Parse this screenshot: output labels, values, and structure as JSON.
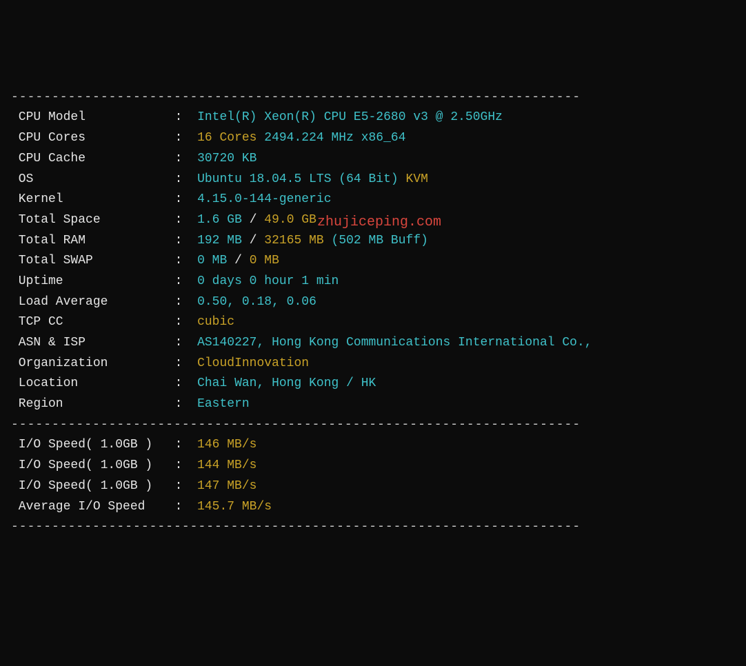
{
  "watermark": "zhujiceping.com",
  "sep": "----------------------------------------------------------------------",
  "rows": [
    {
      "label": "CPU Model",
      "spaces": "           ",
      "colon": " :  ",
      "parts": [
        {
          "t": "Intel(R) Xeon(R) CPU E5-2680 v3 @ 2.50GHz",
          "c": "cyan"
        }
      ]
    },
    {
      "label": "CPU Cores",
      "spaces": "           ",
      "colon": " :  ",
      "parts": [
        {
          "t": "16 Cores ",
          "c": "yellow"
        },
        {
          "t": "2494.224 MHz x86_64",
          "c": "cyan"
        }
      ]
    },
    {
      "label": "CPU Cache",
      "spaces": "           ",
      "colon": " :  ",
      "parts": [
        {
          "t": "30720 KB",
          "c": "cyan"
        }
      ]
    },
    {
      "label": "OS",
      "spaces": "                  ",
      "colon": " :  ",
      "parts": [
        {
          "t": "Ubuntu 18.04.5 LTS (64 Bit) ",
          "c": "cyan"
        },
        {
          "t": "KVM",
          "c": "yellow"
        }
      ]
    },
    {
      "label": "Kernel",
      "spaces": "              ",
      "colon": " :  ",
      "parts": [
        {
          "t": "4.15.0-144-generic",
          "c": "cyan"
        }
      ]
    },
    {
      "label": "Total Space",
      "spaces": "         ",
      "colon": " :  ",
      "parts": [
        {
          "t": "1.6 GB ",
          "c": "cyan"
        },
        {
          "t": "/ ",
          "c": "white"
        },
        {
          "t": "49.0 GB",
          "c": "yellow"
        }
      ]
    },
    {
      "label": "Total RAM",
      "spaces": "           ",
      "colon": " :  ",
      "parts": [
        {
          "t": "192 MB ",
          "c": "cyan"
        },
        {
          "t": "/ ",
          "c": "white"
        },
        {
          "t": "32165 MB ",
          "c": "yellow"
        },
        {
          "t": "(502 MB Buff)",
          "c": "cyan"
        }
      ]
    },
    {
      "label": "Total SWAP",
      "spaces": "          ",
      "colon": " :  ",
      "parts": [
        {
          "t": "0 MB ",
          "c": "cyan"
        },
        {
          "t": "/ ",
          "c": "white"
        },
        {
          "t": "0 MB",
          "c": "yellow"
        }
      ]
    },
    {
      "label": "Uptime",
      "spaces": "              ",
      "colon": " :  ",
      "parts": [
        {
          "t": "0 days 0 hour 1 min",
          "c": "cyan"
        }
      ]
    },
    {
      "label": "Load Average",
      "spaces": "        ",
      "colon": " :  ",
      "parts": [
        {
          "t": "0.50, 0.18, 0.06",
          "c": "cyan"
        }
      ]
    },
    {
      "label": "TCP CC",
      "spaces": "              ",
      "colon": " :  ",
      "parts": [
        {
          "t": "cubic",
          "c": "yellow"
        }
      ]
    },
    {
      "label": "ASN & ISP",
      "spaces": "           ",
      "colon": " :  ",
      "parts": [
        {
          "t": "AS140227, Hong Kong Communications International Co.,",
          "c": "cyan"
        }
      ]
    },
    {
      "label": "Organization",
      "spaces": "        ",
      "colon": " :  ",
      "parts": [
        {
          "t": "CloudInnovation",
          "c": "yellow"
        }
      ]
    },
    {
      "label": "Location",
      "spaces": "            ",
      "colon": " :  ",
      "parts": [
        {
          "t": "Chai Wan, Hong Kong / HK",
          "c": "cyan"
        }
      ]
    },
    {
      "label": "Region",
      "spaces": "              ",
      "colon": " :  ",
      "parts": [
        {
          "t": "Eastern",
          "c": "cyan"
        }
      ]
    }
  ],
  "io_rows": [
    {
      "label": "I/O Speed( 1.0GB )",
      "spaces": "   ",
      "colon": ":  ",
      "parts": [
        {
          "t": "146 MB/s",
          "c": "yellow"
        }
      ]
    },
    {
      "label": "I/O Speed( 1.0GB )",
      "spaces": "   ",
      "colon": ":  ",
      "parts": [
        {
          "t": "144 MB/s",
          "c": "yellow"
        }
      ]
    },
    {
      "label": "I/O Speed( 1.0GB )",
      "spaces": "   ",
      "colon": ":  ",
      "parts": [
        {
          "t": "147 MB/s",
          "c": "yellow"
        }
      ]
    },
    {
      "label": "Average I/O Speed",
      "spaces": "    ",
      "colon": ":  ",
      "parts": [
        {
          "t": "145.7 MB/s",
          "c": "yellow"
        }
      ]
    }
  ]
}
